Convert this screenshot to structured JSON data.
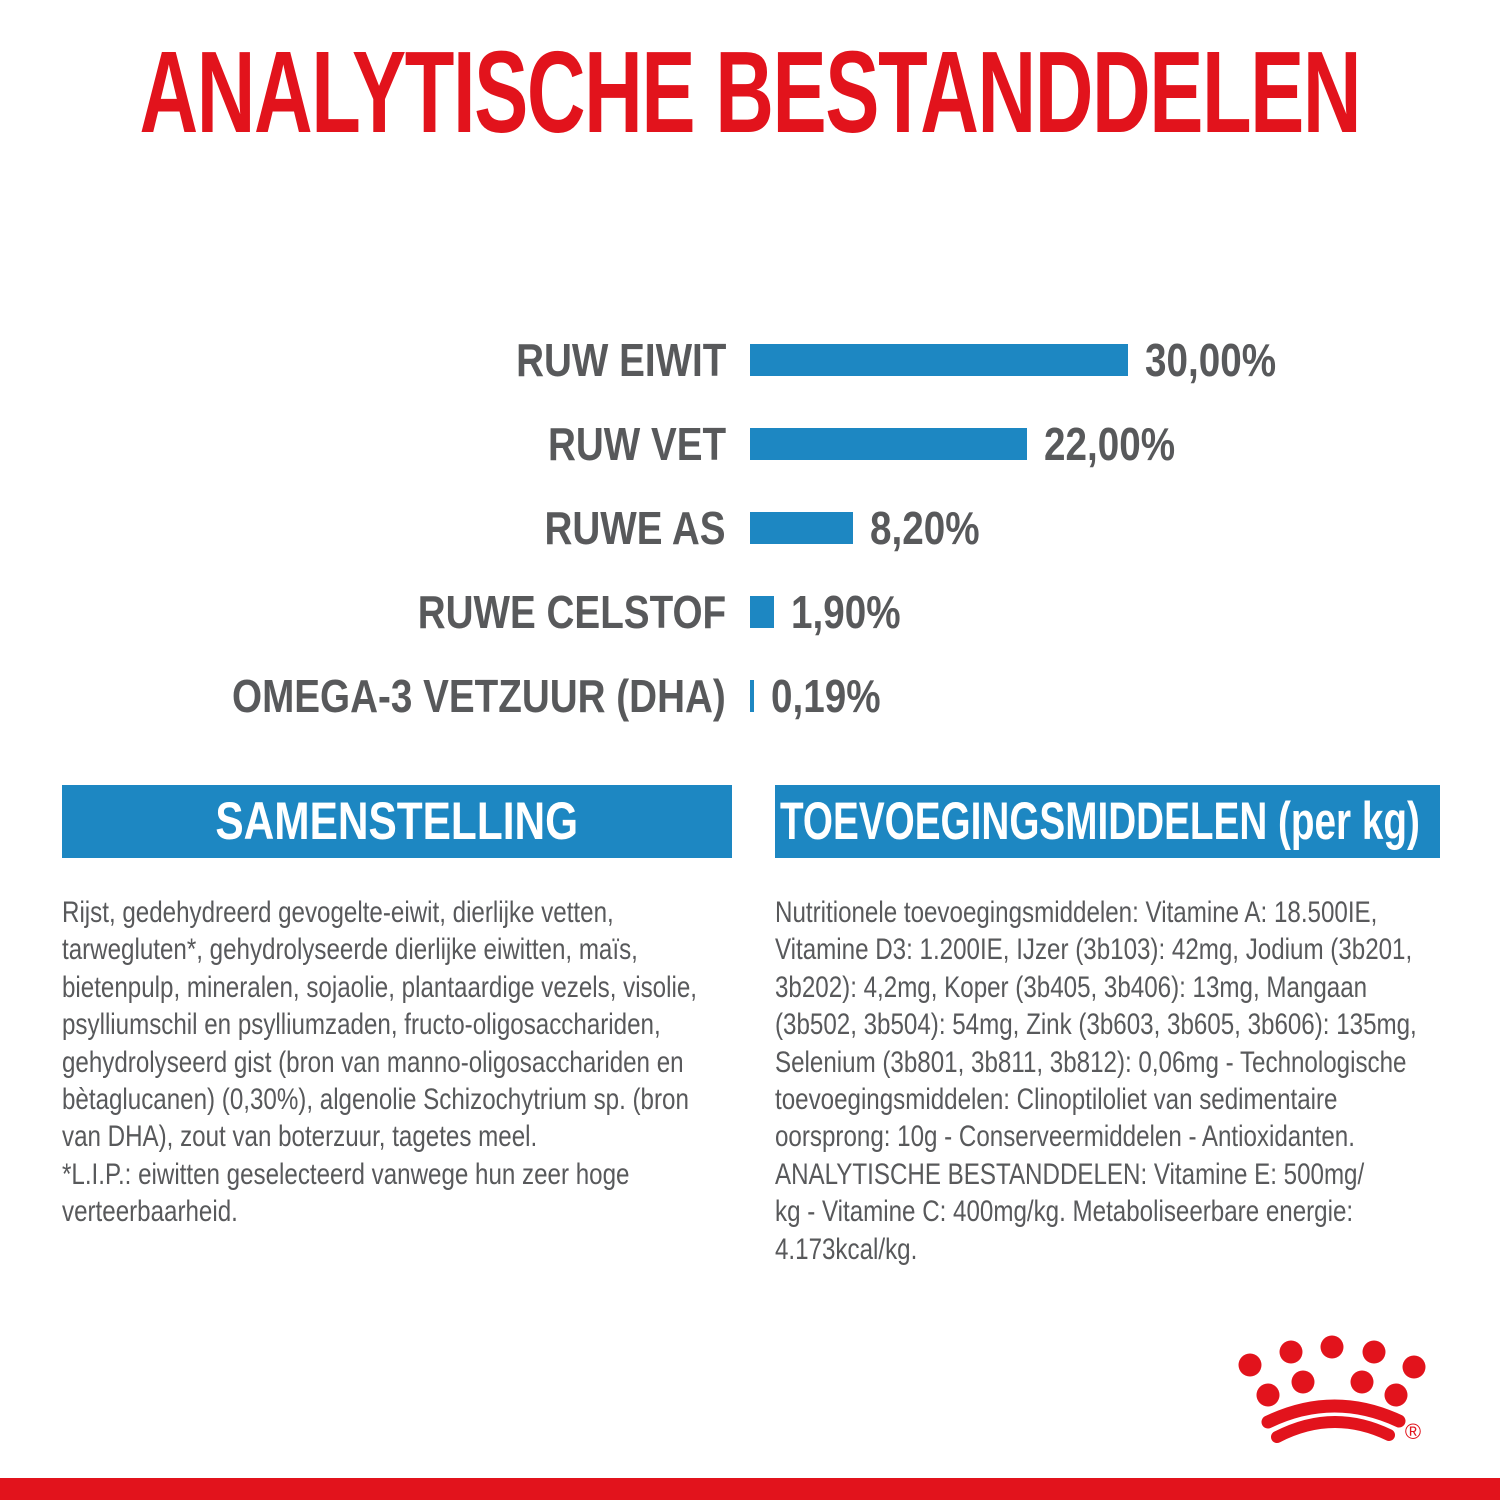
{
  "page": {
    "title": "ANALYTISCHE BESTANDDELEN"
  },
  "chart_data": {
    "type": "bar",
    "orientation": "horizontal",
    "title": "ANALYTISCHE BESTANDDELEN",
    "categories": [
      "RUW EIWIT",
      "RUW VET",
      "RUWE AS",
      "RUWE CELSTOF",
      "OMEGA-3 VETZUUR (DHA)"
    ],
    "values": [
      30.0,
      22.0,
      8.2,
      1.9,
      0.19
    ],
    "value_labels": [
      "30,00%",
      "22,00%",
      "8,20%",
      "1,90%",
      "0,19%"
    ],
    "unit": "%",
    "xlim": [
      0,
      30
    ],
    "grid": false,
    "legend": false,
    "bar_color": "#1d87c2",
    "label_color": "#58595b"
  },
  "samenstelling": {
    "heading": "SAMENSTELLING",
    "body": "Rijst, gedehydreerd gevogelte-eiwit, dierlijke vetten,\ntarwegluten*, gehydrolyseerde dierlijke eiwitten, maïs,\nbietenpulp, mineralen, sojaolie, plantaardige vezels, visolie,\npsylliumschil en psylliumzaden, fructo-oligosacchariden,\ngehydrolyseerd gist (bron van manno-oligosacchariden en\nbètaglucanen) (0,30%), algenolie Schizochytrium sp. (bron\nvan DHA), zout van boterzuur, tagetes meel.\n*L.I.P.: eiwitten geselecteerd vanwege hun zeer hoge\nverteerbaarheid."
  },
  "toevoegingsmiddelen": {
    "heading": "TOEVOEGINGSMIDDELEN (per kg)",
    "body": "Nutritionele toevoegingsmiddelen: Vitamine A: 18.500IE,\nVitamine D3: 1.200IE, IJzer (3b103): 42mg, Jodium (3b201,\n3b202): 4,2mg, Koper (3b405, 3b406): 13mg, Mangaan\n(3b502, 3b504): 54mg, Zink (3b603, 3b605, 3b606): 135mg,\nSelenium (3b801, 3b811, 3b812): 0,06mg - Technologische\ntoevoegingsmiddelen: Clinoptiloliet van sedimentaire\noorsprong: 10g - Conserveermiddelen - Antioxidanten.\nANALYTISCHE BESTANDDELEN: Vitamine E: 500mg/\nkg - Vitamine C: 400mg/kg. Metaboliseerbare energie:\n4.173kcal/kg."
  },
  "logo": {
    "name": "royal-canin-crown",
    "registered_mark": "®"
  },
  "colors": {
    "red": "#e2131c",
    "blue": "#1d87c2",
    "text_gray": "#58595b"
  }
}
